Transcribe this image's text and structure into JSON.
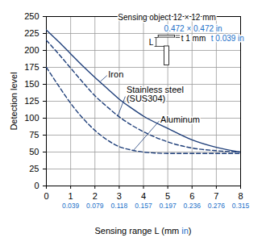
{
  "chart_data": {
    "type": "line",
    "ylabel": "Detection level",
    "xlabel": {
      "text": "Sensing range L (mm in)",
      "highlight": "in",
      "highlight_color": "#1a6fc9"
    },
    "x": [
      0,
      0.5,
      1,
      1.5,
      2,
      2.5,
      3,
      3.5,
      4,
      5,
      6,
      7,
      8
    ],
    "series": [
      {
        "name": "Iron",
        "color": "#1f3f7a",
        "line_style": "solid",
        "values": [
          230,
          213,
          195,
          177,
          160,
          144,
          128,
          115,
          103,
          85,
          68,
          57,
          50
        ]
      },
      {
        "name": "Stainless steel\n(SUS304)",
        "color": "#1f3f7a",
        "line_style": "dashed",
        "values": [
          215,
          195,
          174,
          153,
          133,
          117,
          102,
          90,
          80,
          65,
          56,
          52,
          50
        ]
      },
      {
        "name": "Aluminum",
        "color": "#1f3f7a",
        "line_style": "dashed",
        "values": [
          175,
          148,
          122,
          100,
          82,
          68,
          58,
          53,
          50,
          48,
          48,
          48,
          48
        ]
      }
    ],
    "xlim": [
      0,
      8
    ],
    "xticks": [
      0,
      1,
      2,
      3,
      4,
      5,
      6,
      7,
      8
    ],
    "xtick_inch_labels": [
      null,
      "0.039",
      "0.079",
      "0.118",
      "0.157",
      "0.197",
      "0.236",
      "0.276",
      "0.315"
    ],
    "xtick_inch_color": "#1a6fc9",
    "ylim": [
      0,
      250
    ],
    "yticks": [
      0,
      25,
      50,
      75,
      100,
      125,
      150,
      175,
      200,
      225,
      250
    ],
    "grid": true,
    "annotations": [
      {
        "text": "Sensing object 12 × 12 mm",
        "color": "#000000"
      },
      {
        "text": "0.472 × 0.472 in",
        "color": "#1a6fc9"
      },
      {
        "text": "t 1 mm",
        "color": "#000000"
      },
      {
        "text": "t 0.039 in",
        "color": "#1a6fc9"
      },
      {
        "text": "L",
        "color": "#000000"
      }
    ]
  }
}
